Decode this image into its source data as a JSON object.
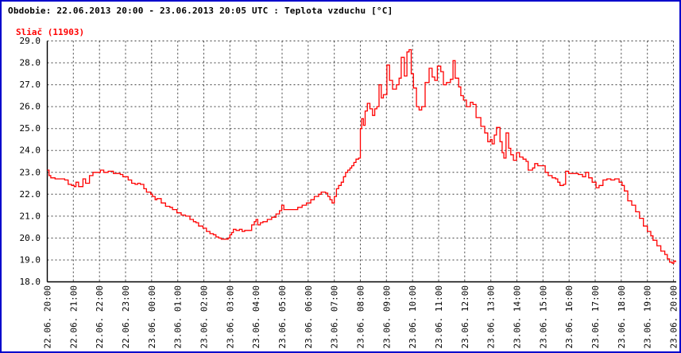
{
  "header": {
    "title": "Obdobie: 22.06.2013 20:00 - 23.06.2013 20:05 UTC : Teplota vzduchu [°C]"
  },
  "legend": {
    "station": "Sliač (11903)"
  },
  "colors": {
    "frame": "#0000cc",
    "line": "#ff0000",
    "grid": "#404040",
    "axis": "#000000",
    "text": "#000000"
  },
  "chart_data": {
    "type": "line",
    "title": "Teplota vzduchu [°C]",
    "station": "Sliač (11903)",
    "period": "22.06.2013 20:00 - 23.06.2013 20:05 UTC",
    "ylabel": "Teplota vzduchu [°C]",
    "ylim": [
      18.0,
      29.0
    ],
    "grid": true,
    "legend_position": "top-left",
    "y_ticks": [
      "29.0",
      "28.0",
      "27.0",
      "26.0",
      "25.0",
      "24.0",
      "23.0",
      "22.0",
      "21.0",
      "20.0",
      "19.0",
      "18.0"
    ],
    "x_ticks": [
      "22.06. 20:00",
      "22.06. 21:00",
      "22.06. 22:00",
      "22.06. 23:00",
      "23.06. 00:00",
      "23.06. 01:00",
      "23.06. 02:00",
      "23.06. 03:00",
      "23.06. 04:00",
      "23.06. 05:00",
      "23.06. 06:00",
      "23.06. 07:00",
      "23.06. 08:00",
      "23.06. 09:00",
      "23.06. 10:00",
      "23.06. 11:00",
      "23.06. 12:00",
      "23.06. 13:00",
      "23.06. 14:00",
      "23.06. 15:00",
      "23.06. 16:00",
      "23.06. 17:00",
      "23.06. 18:00",
      "23.06. 19:00",
      "23.06. 20:00"
    ],
    "x_unit": "minutes since 22.06.2013 20:00 UTC",
    "x_range_minutes": [
      0,
      1445
    ],
    "series": [
      {
        "name": "Sliač (11903)",
        "color": "#ff0000",
        "points": [
          [
            0,
            23.1
          ],
          [
            4,
            22.85
          ],
          [
            8,
            22.75
          ],
          [
            18,
            22.7
          ],
          [
            30,
            22.7
          ],
          [
            40,
            22.65
          ],
          [
            48,
            22.45
          ],
          [
            56,
            22.4
          ],
          [
            62,
            22.35
          ],
          [
            66,
            22.55
          ],
          [
            72,
            22.35
          ],
          [
            82,
            22.7
          ],
          [
            88,
            22.5
          ],
          [
            97,
            22.85
          ],
          [
            105,
            23.0
          ],
          [
            122,
            23.1
          ],
          [
            130,
            23.0
          ],
          [
            140,
            23.05
          ],
          [
            152,
            22.95
          ],
          [
            168,
            22.9
          ],
          [
            174,
            22.8
          ],
          [
            186,
            22.65
          ],
          [
            194,
            22.5
          ],
          [
            202,
            22.45
          ],
          [
            208,
            22.5
          ],
          [
            214,
            22.45
          ],
          [
            222,
            22.25
          ],
          [
            228,
            22.1
          ],
          [
            238,
            22.0
          ],
          [
            242,
            21.9
          ],
          [
            248,
            21.75
          ],
          [
            252,
            21.8
          ],
          [
            262,
            21.6
          ],
          [
            272,
            21.45
          ],
          [
            282,
            21.4
          ],
          [
            288,
            21.3
          ],
          [
            298,
            21.15
          ],
          [
            308,
            21.05
          ],
          [
            318,
            21.0
          ],
          [
            328,
            20.85
          ],
          [
            336,
            20.75
          ],
          [
            342,
            20.7
          ],
          [
            348,
            20.55
          ],
          [
            358,
            20.45
          ],
          [
            366,
            20.3
          ],
          [
            374,
            20.2
          ],
          [
            382,
            20.15
          ],
          [
            388,
            20.05
          ],
          [
            394,
            20.0
          ],
          [
            400,
            19.95
          ],
          [
            410,
            19.95
          ],
          [
            416,
            20.0
          ],
          [
            420,
            20.15
          ],
          [
            424,
            20.25
          ],
          [
            428,
            20.4
          ],
          [
            434,
            20.35
          ],
          [
            442,
            20.4
          ],
          [
            448,
            20.3
          ],
          [
            454,
            20.35
          ],
          [
            464,
            20.35
          ],
          [
            470,
            20.6
          ],
          [
            476,
            20.75
          ],
          [
            480,
            20.85
          ],
          [
            484,
            20.6
          ],
          [
            490,
            20.7
          ],
          [
            496,
            20.75
          ],
          [
            506,
            20.85
          ],
          [
            516,
            20.95
          ],
          [
            526,
            21.1
          ],
          [
            534,
            21.25
          ],
          [
            539,
            21.5
          ],
          [
            544,
            21.3
          ],
          [
            556,
            21.3
          ],
          [
            566,
            21.3
          ],
          [
            576,
            21.4
          ],
          [
            586,
            21.5
          ],
          [
            596,
            21.6
          ],
          [
            606,
            21.75
          ],
          [
            614,
            21.9
          ],
          [
            624,
            22.0
          ],
          [
            630,
            22.1
          ],
          [
            640,
            22.05
          ],
          [
            645,
            21.9
          ],
          [
            650,
            21.75
          ],
          [
            655,
            21.6
          ],
          [
            660,
            21.9
          ],
          [
            665,
            22.25
          ],
          [
            670,
            22.4
          ],
          [
            676,
            22.55
          ],
          [
            681,
            22.8
          ],
          [
            686,
            23.0
          ],
          [
            691,
            23.1
          ],
          [
            696,
            23.2
          ],
          [
            700,
            23.3
          ],
          [
            705,
            23.45
          ],
          [
            710,
            23.6
          ],
          [
            716,
            23.65
          ],
          [
            720,
            25.0
          ],
          [
            723,
            25.45
          ],
          [
            727,
            25.15
          ],
          [
            731,
            25.8
          ],
          [
            736,
            26.15
          ],
          [
            742,
            25.9
          ],
          [
            748,
            25.6
          ],
          [
            753,
            25.9
          ],
          [
            758,
            26.0
          ],
          [
            763,
            27.0
          ],
          [
            768,
            26.4
          ],
          [
            773,
            26.55
          ],
          [
            781,
            27.9
          ],
          [
            787,
            27.2
          ],
          [
            794,
            26.8
          ],
          [
            803,
            27.0
          ],
          [
            809,
            27.3
          ],
          [
            814,
            28.25
          ],
          [
            821,
            27.4
          ],
          [
            827,
            28.5
          ],
          [
            832,
            28.6
          ],
          [
            837,
            27.5
          ],
          [
            842,
            26.85
          ],
          [
            849,
            26.0
          ],
          [
            855,
            25.85
          ],
          [
            861,
            26.0
          ],
          [
            869,
            27.1
          ],
          [
            878,
            27.75
          ],
          [
            885,
            27.35
          ],
          [
            891,
            27.2
          ],
          [
            897,
            27.85
          ],
          [
            905,
            27.6
          ],
          [
            911,
            27.0
          ],
          [
            918,
            27.1
          ],
          [
            927,
            27.25
          ],
          [
            933,
            28.1
          ],
          [
            938,
            27.3
          ],
          [
            946,
            26.9
          ],
          [
            951,
            26.5
          ],
          [
            957,
            26.3
          ],
          [
            964,
            26.0
          ],
          [
            973,
            26.2
          ],
          [
            979,
            26.1
          ],
          [
            986,
            25.5
          ],
          [
            997,
            25.1
          ],
          [
            1006,
            24.8
          ],
          [
            1013,
            24.4
          ],
          [
            1019,
            24.5
          ],
          [
            1023,
            24.3
          ],
          [
            1028,
            24.7
          ],
          [
            1033,
            25.05
          ],
          [
            1041,
            24.4
          ],
          [
            1046,
            23.9
          ],
          [
            1050,
            23.65
          ],
          [
            1055,
            24.8
          ],
          [
            1061,
            24.1
          ],
          [
            1066,
            23.8
          ],
          [
            1072,
            23.55
          ],
          [
            1079,
            23.9
          ],
          [
            1086,
            23.7
          ],
          [
            1094,
            23.6
          ],
          [
            1101,
            23.5
          ],
          [
            1106,
            23.1
          ],
          [
            1116,
            23.2
          ],
          [
            1121,
            23.4
          ],
          [
            1128,
            23.3
          ],
          [
            1137,
            23.3
          ],
          [
            1145,
            23.0
          ],
          [
            1152,
            22.85
          ],
          [
            1161,
            22.75
          ],
          [
            1169,
            22.7
          ],
          [
            1174,
            22.55
          ],
          [
            1179,
            22.4
          ],
          [
            1187,
            22.45
          ],
          [
            1192,
            23.05
          ],
          [
            1199,
            22.95
          ],
          [
            1211,
            22.95
          ],
          [
            1221,
            22.9
          ],
          [
            1231,
            22.8
          ],
          [
            1238,
            23.0
          ],
          [
            1245,
            22.75
          ],
          [
            1253,
            22.55
          ],
          [
            1262,
            22.3
          ],
          [
            1269,
            22.4
          ],
          [
            1278,
            22.65
          ],
          [
            1287,
            22.7
          ],
          [
            1296,
            22.65
          ],
          [
            1305,
            22.7
          ],
          [
            1315,
            22.55
          ],
          [
            1322,
            22.4
          ],
          [
            1327,
            22.15
          ],
          [
            1335,
            21.7
          ],
          [
            1344,
            21.5
          ],
          [
            1353,
            21.2
          ],
          [
            1362,
            20.9
          ],
          [
            1371,
            20.55
          ],
          [
            1380,
            20.3
          ],
          [
            1388,
            20.1
          ],
          [
            1393,
            19.9
          ],
          [
            1402,
            19.65
          ],
          [
            1411,
            19.4
          ],
          [
            1420,
            19.25
          ],
          [
            1426,
            19.05
          ],
          [
            1431,
            18.9
          ],
          [
            1437,
            18.85
          ],
          [
            1441,
            18.95
          ],
          [
            1445,
            18.9
          ]
        ]
      }
    ]
  }
}
